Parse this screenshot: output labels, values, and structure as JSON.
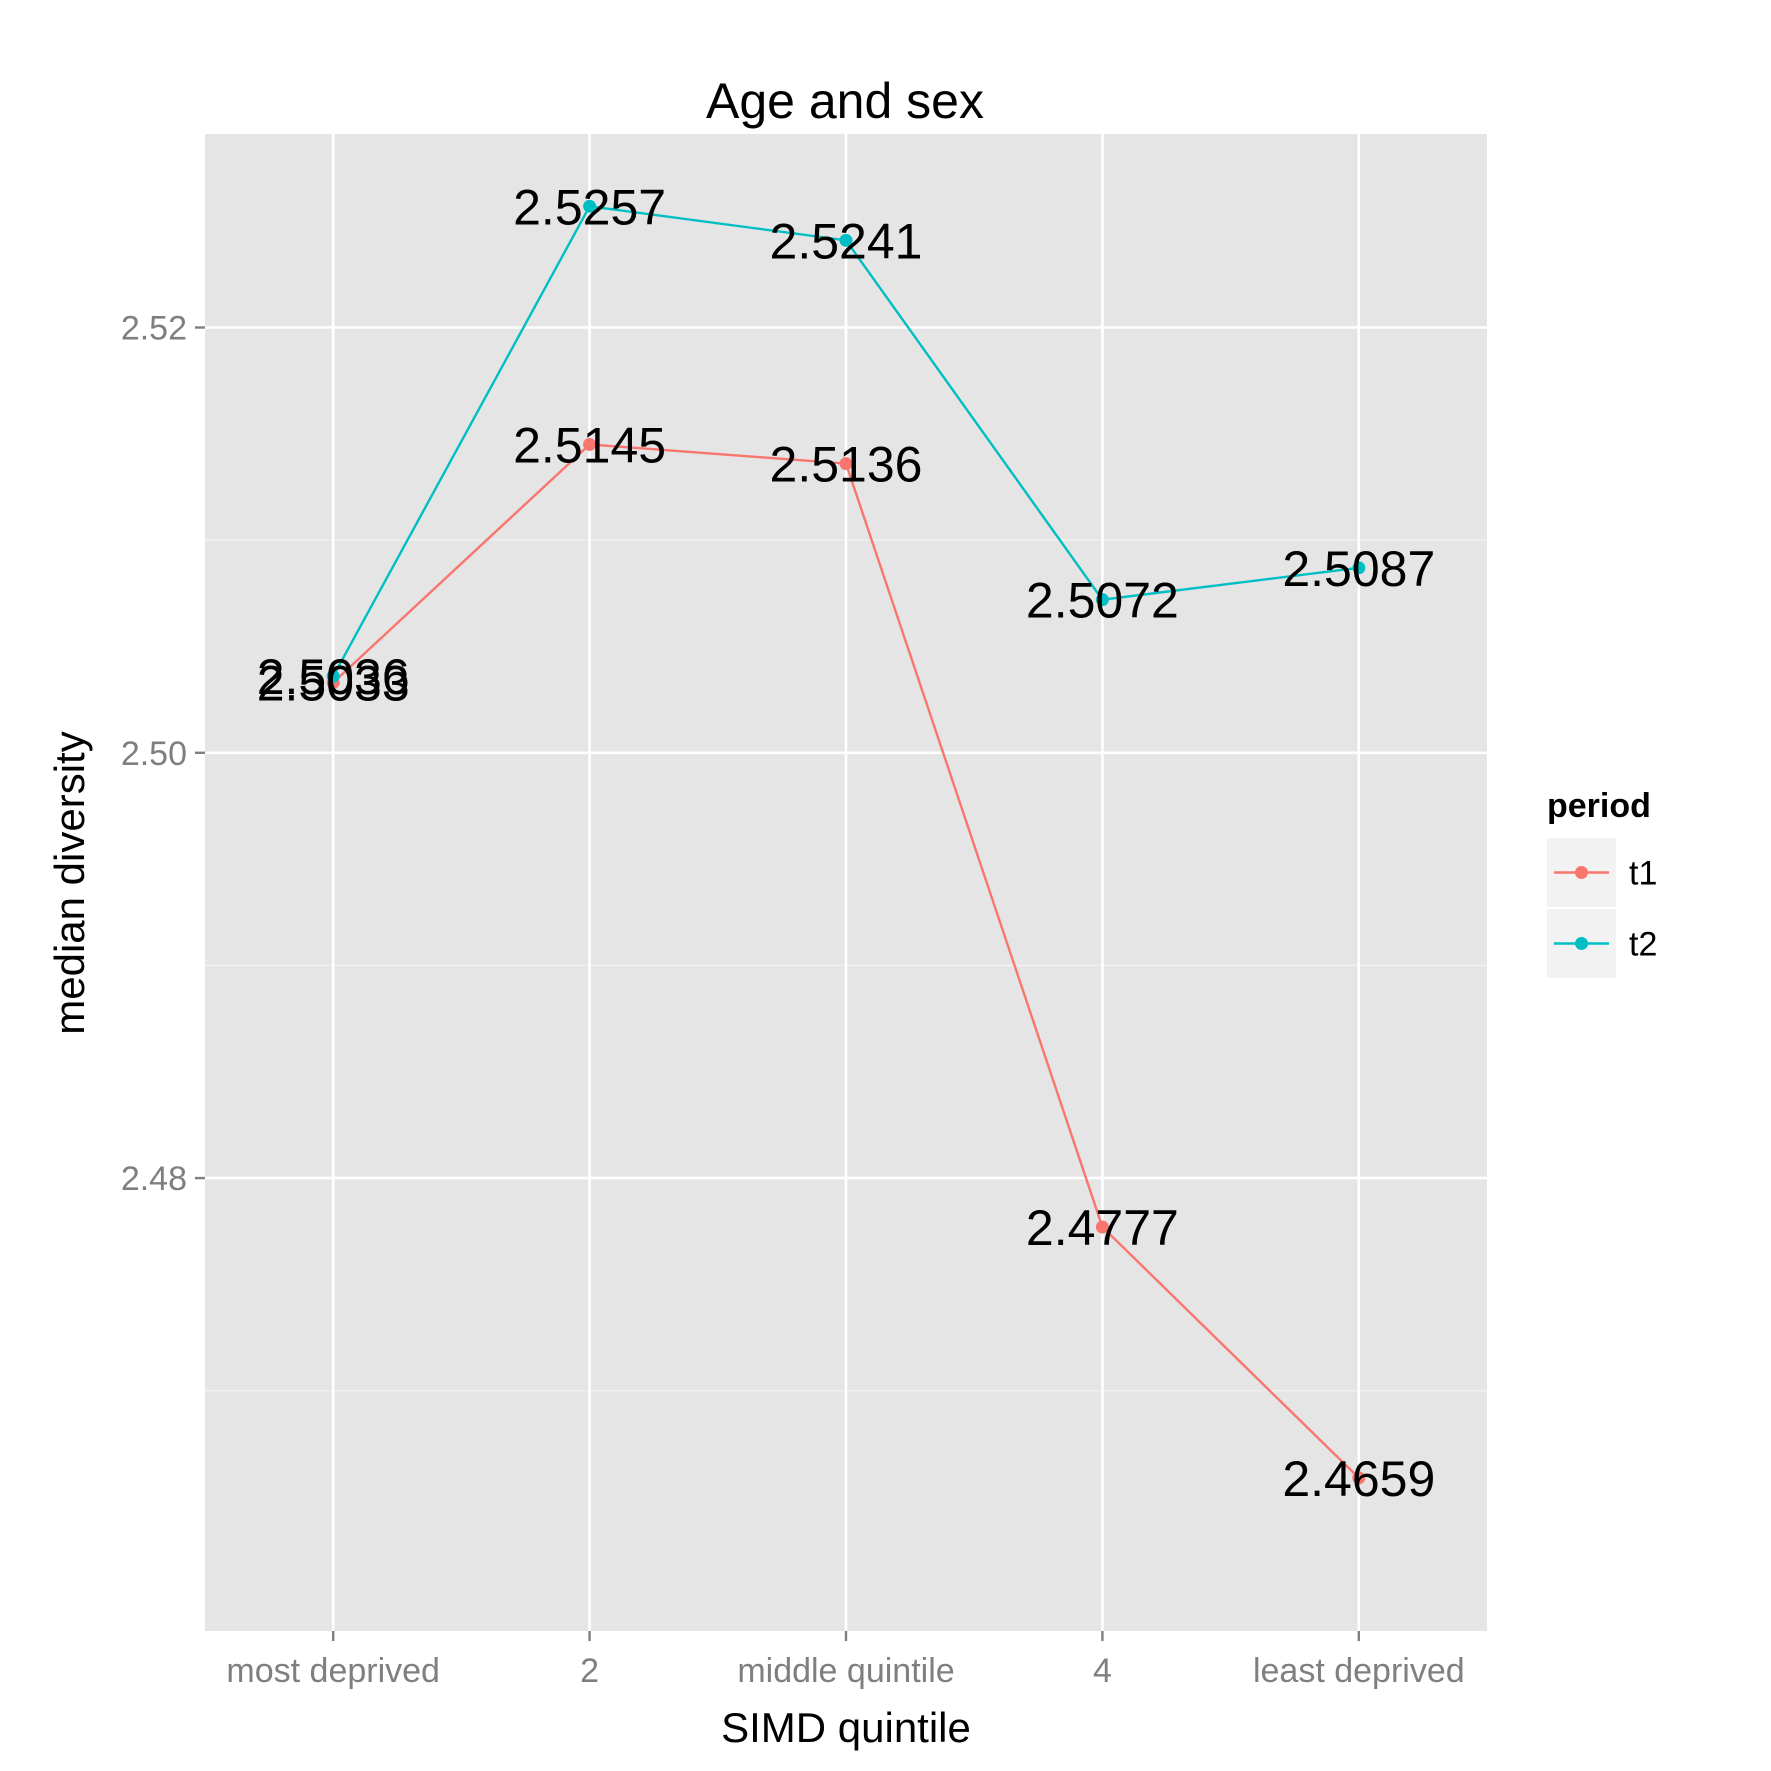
{
  "chart_data": {
    "type": "line",
    "title": "Age and sex",
    "xlabel": "SIMD quintile",
    "ylabel": "median diversity",
    "categories": [
      "most deprived",
      "2",
      "middle quintile",
      "4",
      "least deprived"
    ],
    "y_ticks": [
      "2.48",
      "2.50",
      "2.52"
    ],
    "ylim": [
      2.4587,
      2.5291
    ],
    "grid": true,
    "legend": {
      "title": "period",
      "position": "right"
    },
    "series": [
      {
        "name": "t1",
        "color": "#F8766D",
        "values": [
          2.5033,
          2.5145,
          2.5136,
          2.4777,
          2.4659
        ],
        "labels": [
          "2.5033",
          "2.5145",
          "2.5136",
          "2.4777",
          "2.4659"
        ]
      },
      {
        "name": "t2",
        "color": "#00BFC4",
        "values": [
          2.5036,
          2.5257,
          2.5241,
          2.5072,
          2.5087
        ],
        "labels": [
          "2.5036",
          "2.5257",
          "2.5241",
          "2.5072",
          "2.5087"
        ]
      }
    ]
  }
}
